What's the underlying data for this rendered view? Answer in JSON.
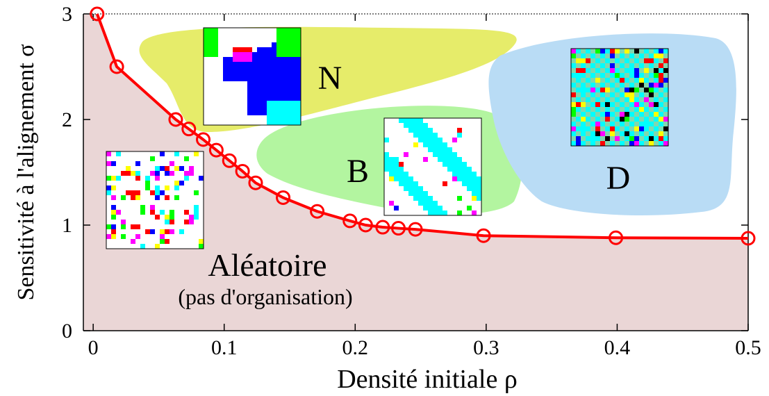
{
  "chart_data": {
    "type": "line",
    "xlabel": "Densité initiale ρ",
    "ylabel": "Sensitivité à l'alignement σ",
    "x": [
      0.003,
      0.018,
      0.063,
      0.073,
      0.084,
      0.094,
      0.104,
      0.114,
      0.124,
      0.145,
      0.171,
      0.196,
      0.208,
      0.221,
      0.233,
      0.246,
      0.298,
      0.399,
      0.5
    ],
    "series": [
      {
        "color": "#ff0000",
        "values": [
          3.0,
          2.5,
          2.0,
          1.91,
          1.81,
          1.71,
          1.61,
          1.51,
          1.4,
          1.26,
          1.13,
          1.04,
          1.0,
          0.98,
          0.97,
          0.96,
          0.9,
          0.88,
          0.875
        ]
      }
    ],
    "xlim": [
      -0.0075,
      0.5
    ],
    "ylim": [
      0,
      3
    ],
    "xticks": [
      0,
      0.1,
      0.2,
      0.3,
      0.4,
      0.5
    ],
    "yticks": [
      0,
      1,
      2,
      3
    ],
    "annotations": [
      "N",
      "B",
      "D",
      "Aléatoire",
      "(pas d'organisation)"
    ]
  }
}
